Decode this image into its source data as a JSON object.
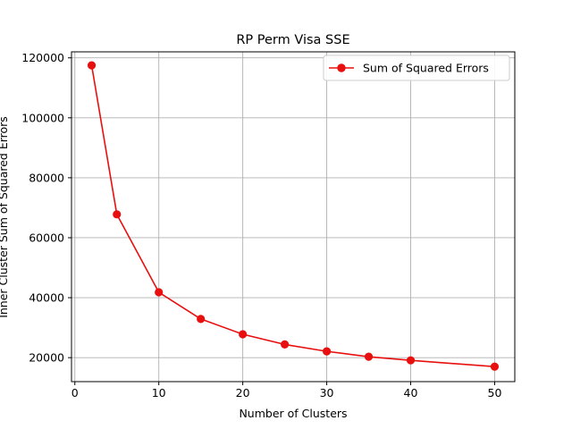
{
  "chart_data": {
    "type": "line",
    "title": "RP Perm Visa SSE",
    "xlabel": "Number of Clusters",
    "ylabel": "Inner Cluster Sum of Squared Errors",
    "xlim": [
      -0.4,
      52.4
    ],
    "ylim": [
      12000,
      122000
    ],
    "xticks": [
      0,
      10,
      20,
      30,
      40,
      50
    ],
    "xtick_labels": [
      "0",
      "10",
      "20",
      "30",
      "40",
      "50"
    ],
    "yticks": [
      20000,
      40000,
      60000,
      80000,
      100000,
      120000
    ],
    "ytick_labels": [
      "20000",
      "40000",
      "60000",
      "80000",
      "100000",
      "120000"
    ],
    "grid": true,
    "legend_position": "top-right",
    "series": [
      {
        "name": "Sum of Squared Errors",
        "color": "#e8100f",
        "marker": "circle",
        "x": [
          2,
          5,
          10,
          15,
          20,
          25,
          30,
          35,
          40,
          50
        ],
        "y": [
          117500,
          67800,
          41800,
          32900,
          27800,
          24400,
          22100,
          20300,
          19100,
          17000
        ]
      }
    ]
  }
}
